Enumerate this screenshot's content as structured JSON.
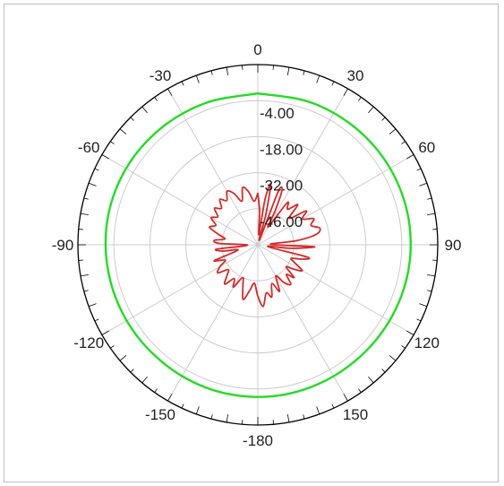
{
  "chart_data": {
    "type": "polar-line",
    "angle_labels": [
      "0",
      "30",
      "60",
      "90",
      "120",
      "150",
      "-180",
      "-150",
      "-120",
      "-90",
      "-60",
      "-30"
    ],
    "angle_values": [
      0,
      30,
      60,
      90,
      120,
      150,
      180,
      210,
      240,
      270,
      300,
      330
    ],
    "radial_labels": [
      "-4.00",
      "-18.00",
      "-32.00",
      "-46.00"
    ],
    "radial_values": [
      -4,
      -18,
      -32,
      -46
    ],
    "radial_range": [
      -60,
      10
    ],
    "grid": true,
    "colors": {
      "series_1": "#22dd22",
      "series_2": "#d42a2a",
      "grid": "#cccccc",
      "axis": "#000000"
    },
    "series": [
      {
        "color": "#22dd22",
        "theta": [
          0,
          20,
          40,
          60,
          80,
          100,
          120,
          140,
          160,
          180,
          200,
          220,
          240,
          260,
          280,
          300,
          320,
          340,
          360
        ],
        "r": [
          -1.2,
          -1.0,
          -0.8,
          -0.6,
          -0.5,
          -0.6,
          -0.9,
          -1.1,
          -1.0,
          -0.9,
          -1.0,
          -1.2,
          -1.1,
          -0.9,
          -0.7,
          -0.8,
          -1.1,
          -1.3,
          -1.2
        ]
      },
      {
        "color": "#d42a2a",
        "theta": [
          0,
          3,
          6,
          9,
          12,
          15,
          18,
          21,
          24,
          27,
          30,
          35,
          40,
          45,
          50,
          55,
          60,
          65,
          70,
          75,
          80,
          84,
          88,
          92,
          96,
          100,
          104,
          108,
          112,
          116,
          120,
          124,
          128,
          132,
          136,
          140,
          145,
          150,
          155,
          160,
          165,
          170,
          175,
          180,
          185,
          190,
          195,
          200,
          205,
          210,
          215,
          220,
          225,
          230,
          235,
          240,
          245,
          250,
          255,
          260,
          264,
          268,
          272,
          276,
          280,
          285,
          290,
          295,
          300,
          305,
          310,
          315,
          320,
          325,
          330,
          335,
          340,
          345,
          350,
          355,
          360
        ],
        "r": [
          -40,
          -47,
          -56,
          -42,
          -36,
          -48,
          -58,
          -38,
          -37,
          -45,
          -52,
          -40,
          -42,
          -38,
          -44,
          -37,
          -40,
          -36,
          -38,
          -35,
          -37,
          -45,
          -55,
          -38,
          -47,
          -56,
          -40,
          -42,
          -46,
          -44,
          -40,
          -43,
          -46,
          -41,
          -44,
          -40,
          -42,
          -46,
          -40,
          -44,
          -39,
          -41,
          -36,
          -40,
          -45,
          -42,
          -38,
          -43,
          -46,
          -41,
          -44,
          -40,
          -43,
          -45,
          -41,
          -43,
          -46,
          -42,
          -52,
          -46,
          -44,
          -56,
          -45,
          -43,
          -47,
          -44,
          -40,
          -42,
          -39,
          -41,
          -38,
          -40,
          -37,
          -39,
          -36,
          -38,
          -42,
          -37,
          -39,
          -43,
          -40
        ]
      }
    ]
  }
}
